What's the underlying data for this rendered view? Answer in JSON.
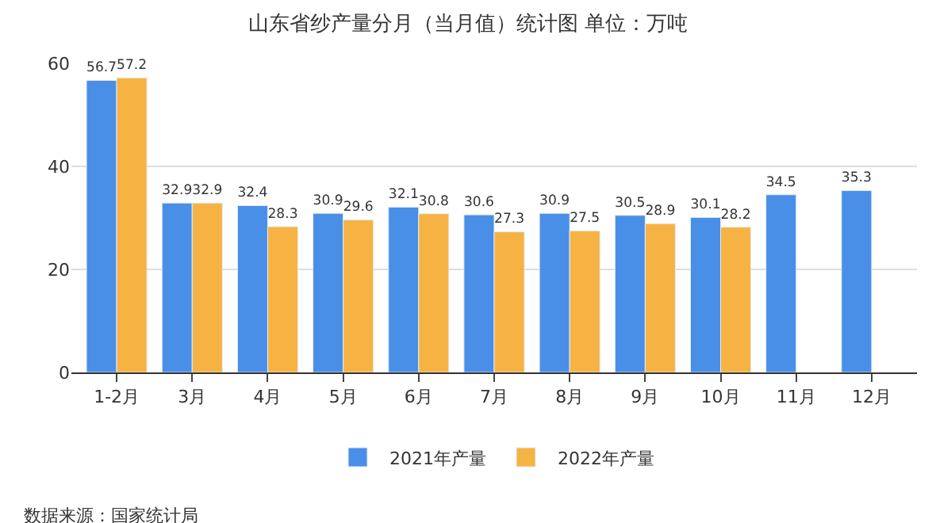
{
  "chart_data": {
    "type": "bar",
    "title": "山东省纱产量分月（当月值）统计图 单位：万吨",
    "categories": [
      "1-2月",
      "3月",
      "4月",
      "5月",
      "6月",
      "7月",
      "8月",
      "9月",
      "10月",
      "11月",
      "12月"
    ],
    "series": [
      {
        "name": "2021年产量",
        "color": "#4a8fe7",
        "values": [
          56.7,
          32.9,
          32.4,
          30.9,
          32.1,
          30.6,
          30.9,
          30.5,
          30.1,
          34.5,
          35.3
        ]
      },
      {
        "name": "2022年产量",
        "color": "#f6b343",
        "values": [
          57.2,
          32.9,
          28.3,
          29.6,
          30.8,
          27.3,
          27.5,
          28.9,
          28.2,
          null,
          null
        ]
      }
    ],
    "ylim": [
      0,
      60
    ],
    "yticks": [
      0,
      20,
      40,
      60
    ],
    "grid": "y",
    "legend": "bottom",
    "data_labels": true,
    "annotations": [
      "数据来源：国家统计局"
    ]
  }
}
